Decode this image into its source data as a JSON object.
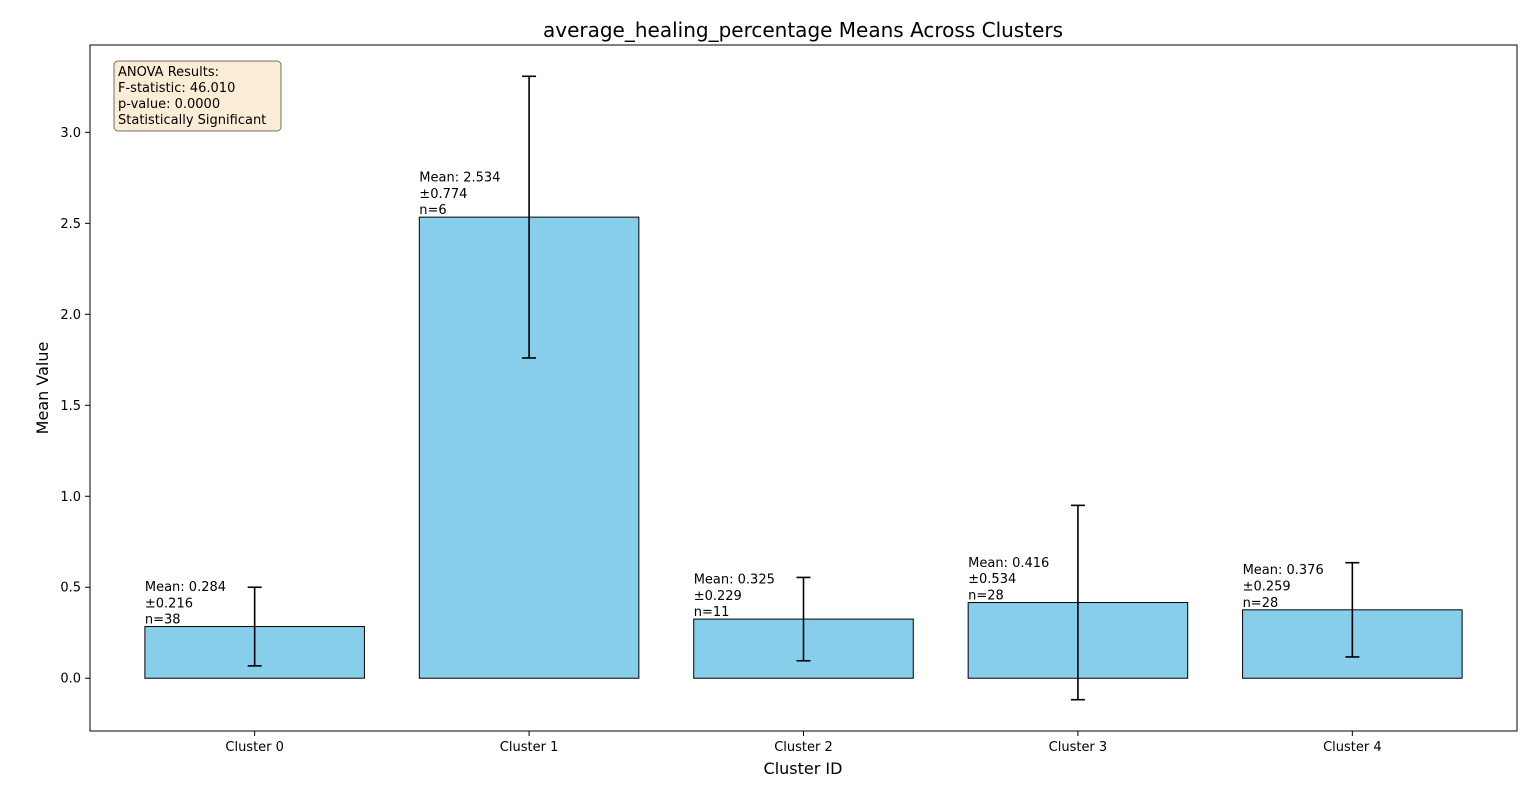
{
  "chart_data": {
    "type": "bar",
    "title": "average_healing_percentage Means Across Clusters",
    "xlabel": "Cluster ID",
    "ylabel": "Mean Value",
    "ylim": [
      -0.29,
      3.48
    ],
    "yticks": [
      0.0,
      0.5,
      1.0,
      1.5,
      2.0,
      2.5,
      3.0
    ],
    "ytick_labels": [
      "0.0",
      "0.5",
      "1.0",
      "1.5",
      "2.0",
      "2.5",
      "3.0"
    ],
    "categories": [
      "Cluster 0",
      "Cluster 1",
      "Cluster 2",
      "Cluster 3",
      "Cluster 4"
    ],
    "values": [
      0.284,
      2.534,
      0.325,
      0.416,
      0.376
    ],
    "errors": [
      0.216,
      0.774,
      0.229,
      0.534,
      0.259
    ],
    "counts": [
      38,
      6,
      11,
      28,
      28
    ],
    "labels": [
      [
        "Mean: 0.284",
        "±0.216",
        "n=38"
      ],
      [
        "Mean: 2.534",
        "±0.774",
        "n=6"
      ],
      [
        "Mean: 0.325",
        "±0.229",
        "n=11"
      ],
      [
        "Mean: 0.416",
        "±0.534",
        "n=28"
      ],
      [
        "Mean: 0.376",
        "±0.259",
        "n=28"
      ]
    ],
    "bar_color": "#87ceeb",
    "grid": false,
    "annotation_box": {
      "lines": [
        "ANOVA Results:",
        "F-statistic: 46.010",
        "p-value: 0.0000",
        "Statistically Significant"
      ],
      "placement": "top-left",
      "fill": "#f5deb3"
    }
  }
}
